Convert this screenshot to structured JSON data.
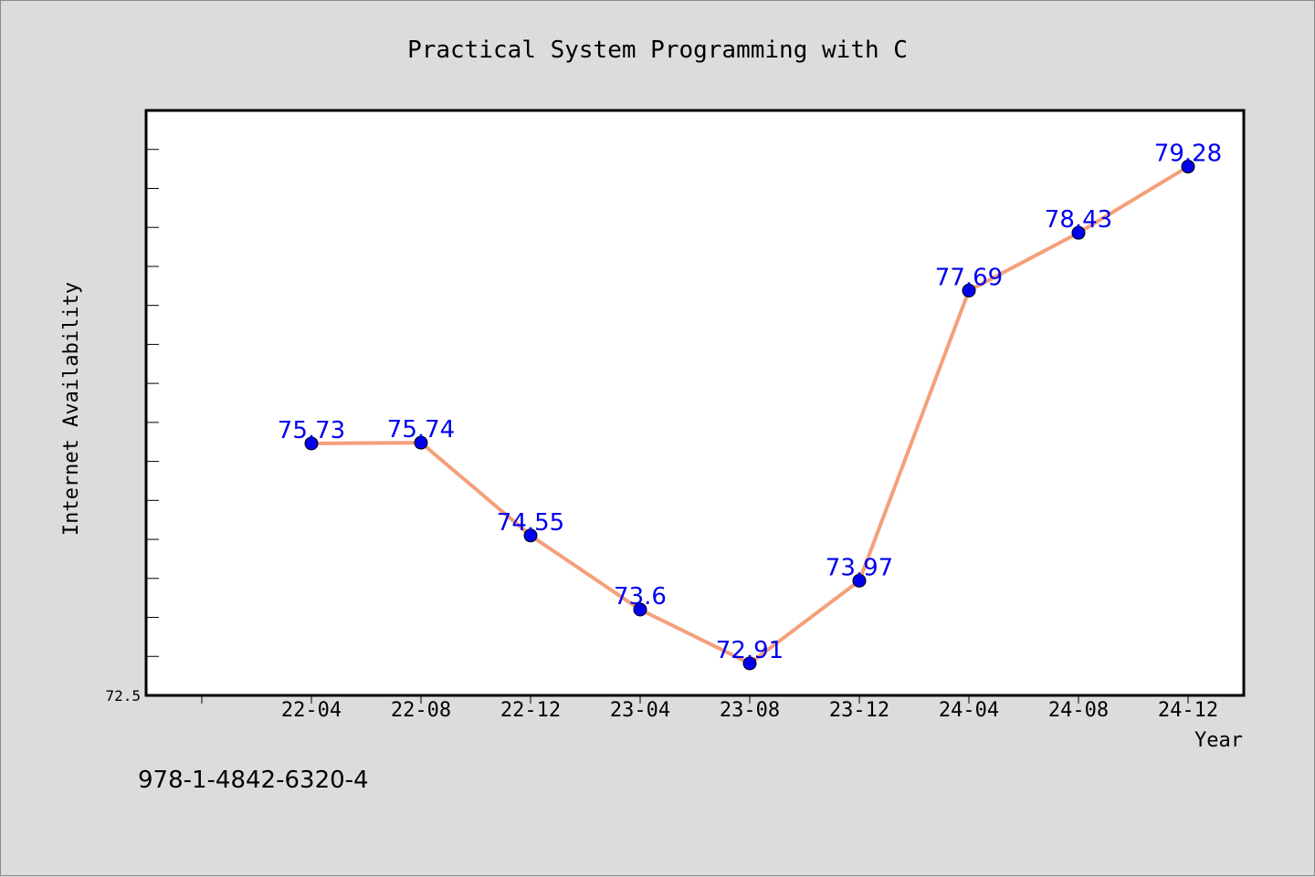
{
  "chart_data": {
    "type": "line",
    "title": "Practical System Programming with C",
    "xlabel": "Year",
    "ylabel": "Internet Availability",
    "categories": [
      "22-04",
      "22-08",
      "22-12",
      "23-04",
      "23-08",
      "23-12",
      "24-04",
      "24-08",
      "24-12"
    ],
    "series": [
      {
        "values": [
          75.73,
          75.74,
          74.55,
          73.6,
          72.91,
          73.97,
          77.69,
          78.43,
          79.28
        ]
      }
    ],
    "data_labels": [
      "75.73",
      "75.74",
      "74.55",
      "73.6",
      "72.91",
      "73.97",
      "77.69",
      "78.43",
      "79.28"
    ],
    "y_tick_labels": [
      "72.5"
    ],
    "ylim": [
      72.5,
      80.0
    ],
    "grid": false,
    "legend": "none",
    "colors": {
      "line": "#f4a07a",
      "marker": "#0000ee",
      "label": "#0000ee",
      "background": "#dcdcdc",
      "plot_bg": "#ffffff"
    }
  },
  "footer": {
    "isbn": "978-1-4842-6320-4"
  }
}
